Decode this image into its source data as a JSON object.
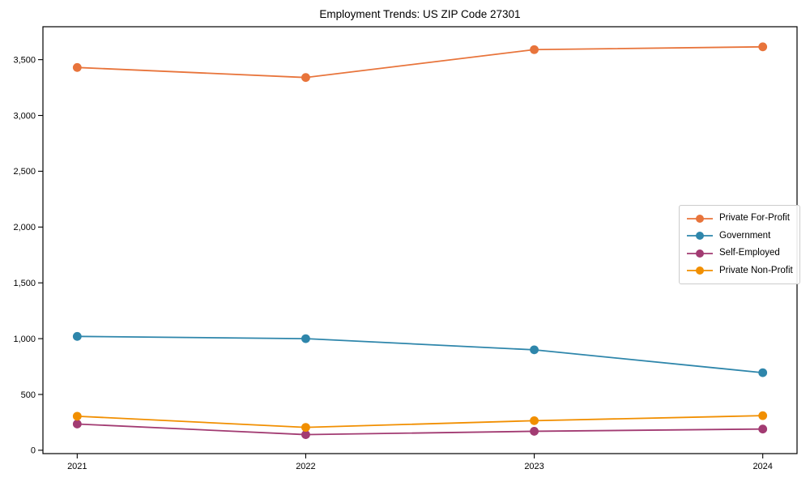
{
  "title": "Employment Trends: US ZIP Code 27301",
  "chart_data": {
    "type": "line",
    "title": "Employment Trends: US ZIP Code 27301",
    "x": [
      2021,
      2022,
      2023,
      2024
    ],
    "xtick_labels": [
      "2021",
      "2022",
      "2023",
      "2024"
    ],
    "yticks": [
      0,
      500,
      1000,
      1500,
      2000,
      2500,
      3000,
      3500
    ],
    "ytick_labels": [
      "0",
      "500",
      "1,000",
      "1,500",
      "2,000",
      "2,500",
      "3,000",
      "3,500"
    ],
    "xlim": [
      2020.85,
      2024.15
    ],
    "ylim": [
      -30,
      3795
    ],
    "xlabel": "",
    "ylabel": "",
    "grid": false,
    "legend_position": "center right",
    "marker": "circle",
    "series": [
      {
        "name": "Private For-Profit",
        "color": "#E8743B",
        "values": [
          3430,
          3340,
          3590,
          3615
        ]
      },
      {
        "name": "Government",
        "color": "#2E86AB",
        "values": [
          1020,
          1000,
          900,
          695
        ]
      },
      {
        "name": "Self-Employed",
        "color": "#A23B72",
        "values": [
          235,
          140,
          170,
          190
        ]
      },
      {
        "name": "Private Non-Profit",
        "color": "#F18F01",
        "values": [
          305,
          205,
          265,
          310
        ]
      }
    ]
  },
  "colors": {
    "background": "#ffffff",
    "spine": "#000000",
    "tick": "#000000",
    "legend_border": "#cccccc"
  }
}
